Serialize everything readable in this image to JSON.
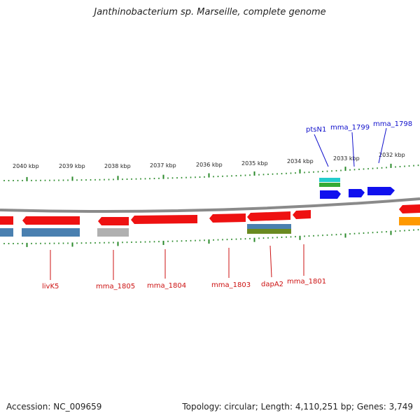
{
  "title": "Janthinobacterium sp. Marseille, complete genome",
  "footer": {
    "accession": "Accession: NC_009659",
    "summary": "Topology: circular; Length: 4,110,251 bp; Genes: 3,749"
  },
  "colors": {
    "backbone": "#888888",
    "tick": "#2a8a2a",
    "gene_red": "#ee1111",
    "gene_blue": "#1111ee",
    "gene_orange": "#ff9900",
    "cog_steelblue": "#4a80b0",
    "cog_gray": "#b0b0b0",
    "cog_olive": "#6a8a20",
    "cog_teal": "#22cccc",
    "cog_green": "#33aa33",
    "label_red": "#cc1111",
    "label_blue": "#1111cc"
  },
  "kbp_labels": [
    "2040 kbp",
    "2039 kbp",
    "2038 kbp",
    "2037 kbp",
    "2036 kbp",
    "2035 kbp",
    "2034 kbp",
    "2033 kbp",
    "2032 kbp"
  ],
  "gene_labels_bottom": [
    "livK5",
    "mma_1805",
    "mma_1804",
    "mma_1803",
    "dapA2",
    "mma_1801"
  ],
  "gene_labels_top": [
    "ptsN1",
    "mma_1799",
    "mma_1798"
  ]
}
